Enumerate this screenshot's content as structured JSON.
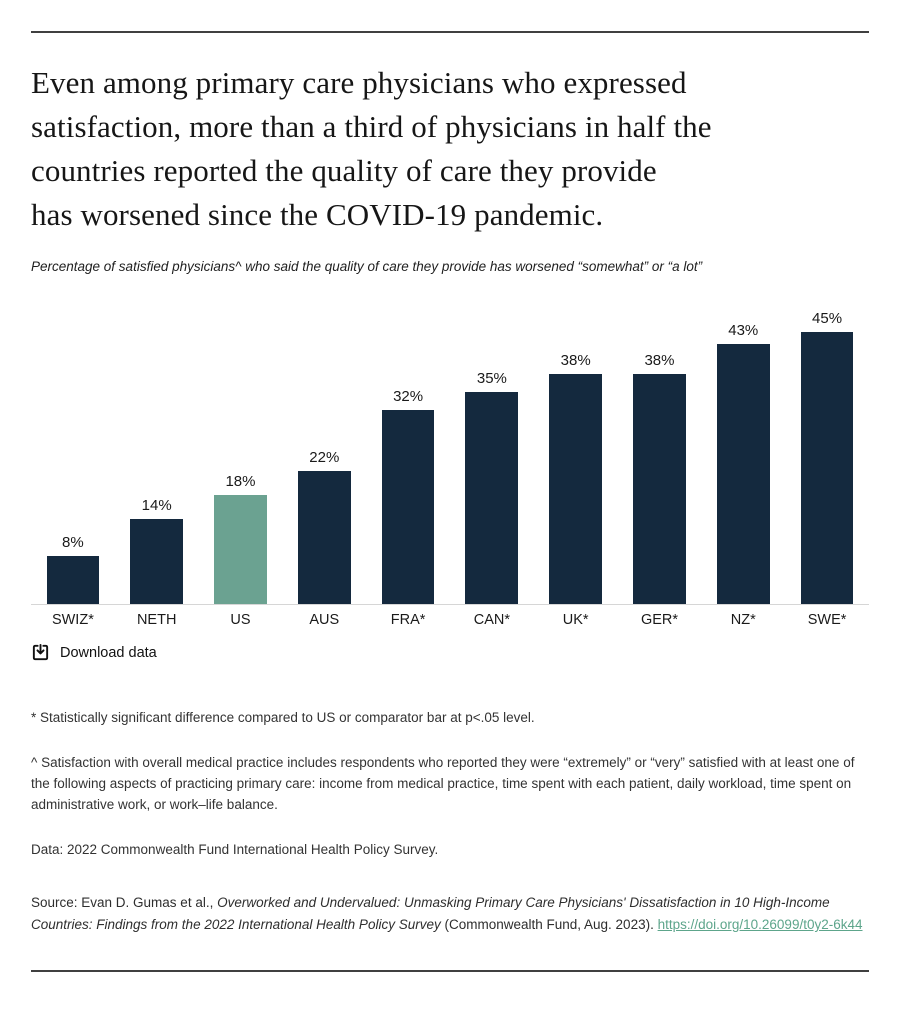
{
  "header": {
    "title_lines": [
      "Even among primary care physicians who expressed",
      "satisfaction, more than a third of physicians in half the",
      "countries reported the quality of care they provide",
      "has worsened since the COVID-19 pandemic."
    ],
    "title_full": "Even among primary care physicians who expressed satisfaction, more than a third of physicians in half the countries reported the quality of care they provide has worsened since the COVID-19 pandemic."
  },
  "chart": {
    "subtitle": "Percentage of satisfied physicians^ who said the quality of care they provide has worsened “somewhat” or “a lot”",
    "download_label": "Download data"
  },
  "chart_data": {
    "type": "bar",
    "title": "Even among primary care physicians who expressed satisfaction, more than a third of physicians in half the countries reported the quality of care they provide has worsened since the COVID-19 pandemic.",
    "subtitle": "Percentage of satisfied physicians^ who said the quality of care they provide has worsened “somewhat” or “a lot”",
    "categories": [
      "SWIZ*",
      "NETH",
      "US",
      "AUS",
      "FRA*",
      "CAN*",
      "UK*",
      "GER*",
      "NZ*",
      "SWE*"
    ],
    "values": [
      8,
      14,
      18,
      22,
      32,
      35,
      38,
      38,
      43,
      45
    ],
    "unit": "%",
    "value_labels": [
      "8%",
      "14%",
      "18%",
      "22%",
      "32%",
      "35%",
      "38%",
      "38%",
      "43%",
      "45%"
    ],
    "highlight_category": "US",
    "ylim": [
      0,
      50
    ],
    "grid": false,
    "legend": "none",
    "xlabel": "",
    "ylabel": ""
  },
  "colors": {
    "bar": "#14293E",
    "highlight_bar": "#6BA291",
    "link": "#5DA58B",
    "rule": "#404040",
    "axis_line": "#D6D6D6"
  },
  "footnotes": {
    "significance": "* Statistically significant difference compared to US or comparator bar at p<.05 level.",
    "satisfaction_definition": "^ Satisfaction with overall medical practice includes respondents who reported they were “extremely” or “very” satisfied with at least one of the following aspects of practicing primary care: income from medical practice, time spent with each patient, daily workload, time spent on administrative work, or work–life balance.",
    "data_note": "Data: 2022 Commonwealth Fund International Health Policy Survey."
  },
  "source": {
    "prefix": "Source: Evan D. Gumas et al., ",
    "title_italic": "Overworked and Undervalued: Unmasking Primary Care Physicians' Dissatisfaction in 10 High-Income Countries: Findings from the 2022 International Health Policy Survey",
    "suffix": " (Commonwealth Fund, Aug. 2023). ",
    "link_text": "https://doi.org/10.26099/t0y2-6k44"
  }
}
